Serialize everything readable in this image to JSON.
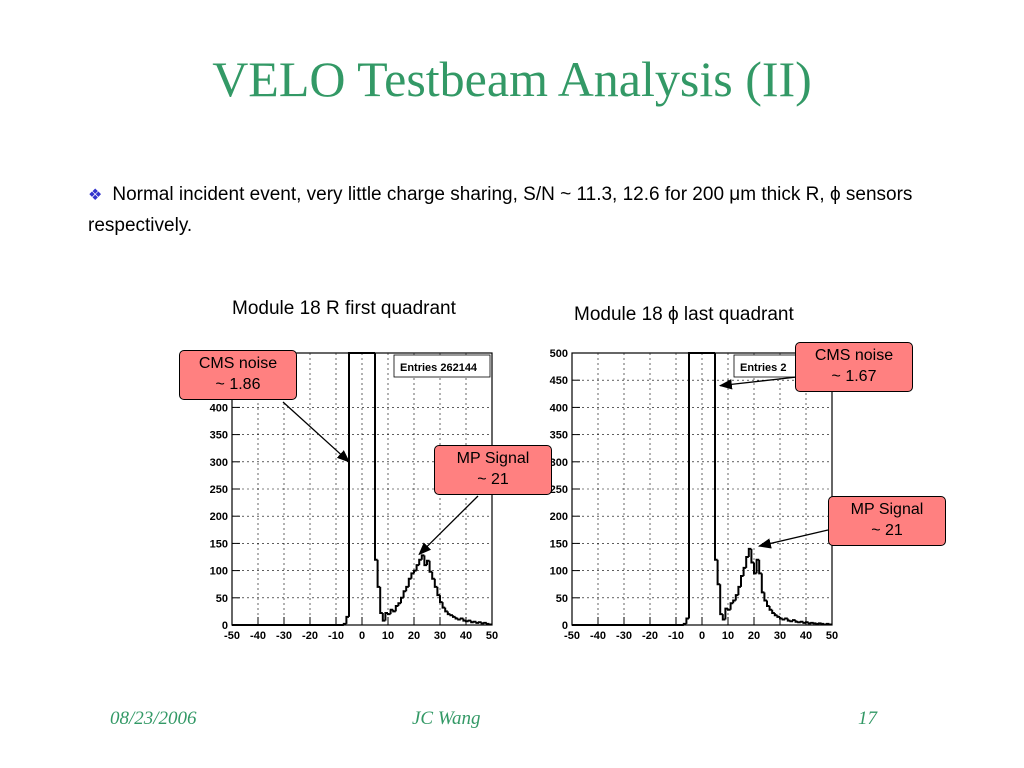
{
  "title": "VELO Testbeam Analysis (II)",
  "bullet": {
    "icon": "diamond-bullet-icon",
    "text": "Normal incident event, very little charge sharing, S/N ~ 11.3, 12.6 for 200 μm thick R, ϕ sensors respectively."
  },
  "colors": {
    "title": "#339966",
    "bullet": "#3333cc",
    "callout": "#ff8080"
  },
  "footer": {
    "date": "08/23/2006",
    "author": "JC Wang",
    "page": "17"
  },
  "chart_data": [
    {
      "type": "histogram",
      "caption": "Module 18 R first quadrant",
      "stats_label": "Entries 262144",
      "xlim": [
        -50,
        50
      ],
      "ylim": [
        0,
        500
      ],
      "x_ticks": [
        -50,
        -40,
        -30,
        -20,
        -10,
        0,
        10,
        20,
        30,
        40,
        50
      ],
      "y_ticks": [
        0,
        50,
        100,
        150,
        200,
        250,
        300,
        350,
        400
      ],
      "grid": true,
      "bin_width": 1,
      "bins": [
        {
          "x": -50,
          "y": 0
        },
        {
          "x": -7,
          "y": 2
        },
        {
          "x": -6,
          "y": 15
        },
        {
          "x": -5,
          "y": 500
        },
        {
          "x": 5,
          "y": 120
        },
        {
          "x": 6,
          "y": 70
        },
        {
          "x": 7,
          "y": 22
        },
        {
          "x": 8,
          "y": 8
        },
        {
          "x": 9,
          "y": 22
        },
        {
          "x": 10,
          "y": 20
        },
        {
          "x": 11,
          "y": 28
        },
        {
          "x": 12,
          "y": 25
        },
        {
          "x": 13,
          "y": 35
        },
        {
          "x": 14,
          "y": 40
        },
        {
          "x": 15,
          "y": 50
        },
        {
          "x": 16,
          "y": 62
        },
        {
          "x": 17,
          "y": 70
        },
        {
          "x": 18,
          "y": 85
        },
        {
          "x": 19,
          "y": 95
        },
        {
          "x": 20,
          "y": 100
        },
        {
          "x": 21,
          "y": 110
        },
        {
          "x": 22,
          "y": 120
        },
        {
          "x": 23,
          "y": 128
        },
        {
          "x": 24,
          "y": 110
        },
        {
          "x": 25,
          "y": 118
        },
        {
          "x": 26,
          "y": 98
        },
        {
          "x": 27,
          "y": 85
        },
        {
          "x": 28,
          "y": 70
        },
        {
          "x": 29,
          "y": 55
        },
        {
          "x": 30,
          "y": 42
        },
        {
          "x": 31,
          "y": 32
        },
        {
          "x": 32,
          "y": 25
        },
        {
          "x": 33,
          "y": 20
        },
        {
          "x": 34,
          "y": 18
        },
        {
          "x": 35,
          "y": 15
        },
        {
          "x": 36,
          "y": 12
        },
        {
          "x": 37,
          "y": 10
        },
        {
          "x": 38,
          "y": 12
        },
        {
          "x": 39,
          "y": 8
        },
        {
          "x": 40,
          "y": 7
        },
        {
          "x": 41,
          "y": 8
        },
        {
          "x": 42,
          "y": 5
        },
        {
          "x": 43,
          "y": 6
        },
        {
          "x": 44,
          "y": 4
        },
        {
          "x": 45,
          "y": 5
        },
        {
          "x": 46,
          "y": 3
        },
        {
          "x": 47,
          "y": 4
        },
        {
          "x": 48,
          "y": 2
        },
        {
          "x": 49,
          "y": 1
        }
      ],
      "annotations": [
        {
          "lines": [
            "CMS noise",
            "~ 1.86"
          ],
          "target": {
            "x": -5,
            "y": 300
          }
        },
        {
          "lines": [
            "MP Signal",
            "~ 21"
          ],
          "target": {
            "x": 22,
            "y": 130
          }
        }
      ]
    },
    {
      "type": "histogram",
      "caption": "Module 18 ϕ  last quadrant",
      "stats_label": "Entries 2",
      "xlim": [
        -50,
        50
      ],
      "ylim": [
        0,
        500
      ],
      "x_ticks": [
        -50,
        -40,
        -30,
        -20,
        -10,
        0,
        10,
        20,
        30,
        40,
        50
      ],
      "y_ticks": [
        0,
        50,
        100,
        150,
        200,
        250,
        300,
        350,
        400,
        450,
        500
      ],
      "grid": true,
      "bin_width": 1,
      "bins": [
        {
          "x": -50,
          "y": 0
        },
        {
          "x": -7,
          "y": 2
        },
        {
          "x": -6,
          "y": 12
        },
        {
          "x": -5,
          "y": 500
        },
        {
          "x": 5,
          "y": 120
        },
        {
          "x": 6,
          "y": 75
        },
        {
          "x": 7,
          "y": 20
        },
        {
          "x": 8,
          "y": 10
        },
        {
          "x": 9,
          "y": 30
        },
        {
          "x": 10,
          "y": 28
        },
        {
          "x": 11,
          "y": 40
        },
        {
          "x": 12,
          "y": 45
        },
        {
          "x": 13,
          "y": 55
        },
        {
          "x": 14,
          "y": 70
        },
        {
          "x": 15,
          "y": 90
        },
        {
          "x": 16,
          "y": 105
        },
        {
          "x": 17,
          "y": 125
        },
        {
          "x": 18,
          "y": 140
        },
        {
          "x": 19,
          "y": 115
        },
        {
          "x": 20,
          "y": 95
        },
        {
          "x": 21,
          "y": 120
        },
        {
          "x": 22,
          "y": 95
        },
        {
          "x": 23,
          "y": 60
        },
        {
          "x": 24,
          "y": 45
        },
        {
          "x": 25,
          "y": 35
        },
        {
          "x": 26,
          "y": 28
        },
        {
          "x": 27,
          "y": 22
        },
        {
          "x": 28,
          "y": 18
        },
        {
          "x": 29,
          "y": 15
        },
        {
          "x": 30,
          "y": 12
        },
        {
          "x": 31,
          "y": 10
        },
        {
          "x": 32,
          "y": 12
        },
        {
          "x": 33,
          "y": 8
        },
        {
          "x": 34,
          "y": 7
        },
        {
          "x": 35,
          "y": 9
        },
        {
          "x": 36,
          "y": 6
        },
        {
          "x": 37,
          "y": 5
        },
        {
          "x": 38,
          "y": 6
        },
        {
          "x": 39,
          "y": 4
        },
        {
          "x": 40,
          "y": 5
        },
        {
          "x": 41,
          "y": 3
        },
        {
          "x": 42,
          "y": 4
        },
        {
          "x": 43,
          "y": 3
        },
        {
          "x": 44,
          "y": 2
        },
        {
          "x": 45,
          "y": 3
        },
        {
          "x": 46,
          "y": 2
        },
        {
          "x": 47,
          "y": 1
        },
        {
          "x": 48,
          "y": 2
        },
        {
          "x": 49,
          "y": 1
        }
      ],
      "annotations": [
        {
          "lines": [
            "CMS noise",
            "~ 1.67"
          ],
          "target": {
            "x": 7,
            "y": 440
          }
        },
        {
          "lines": [
            "MP Signal",
            "~ 21"
          ],
          "target": {
            "x": 22,
            "y": 145
          }
        }
      ]
    }
  ]
}
